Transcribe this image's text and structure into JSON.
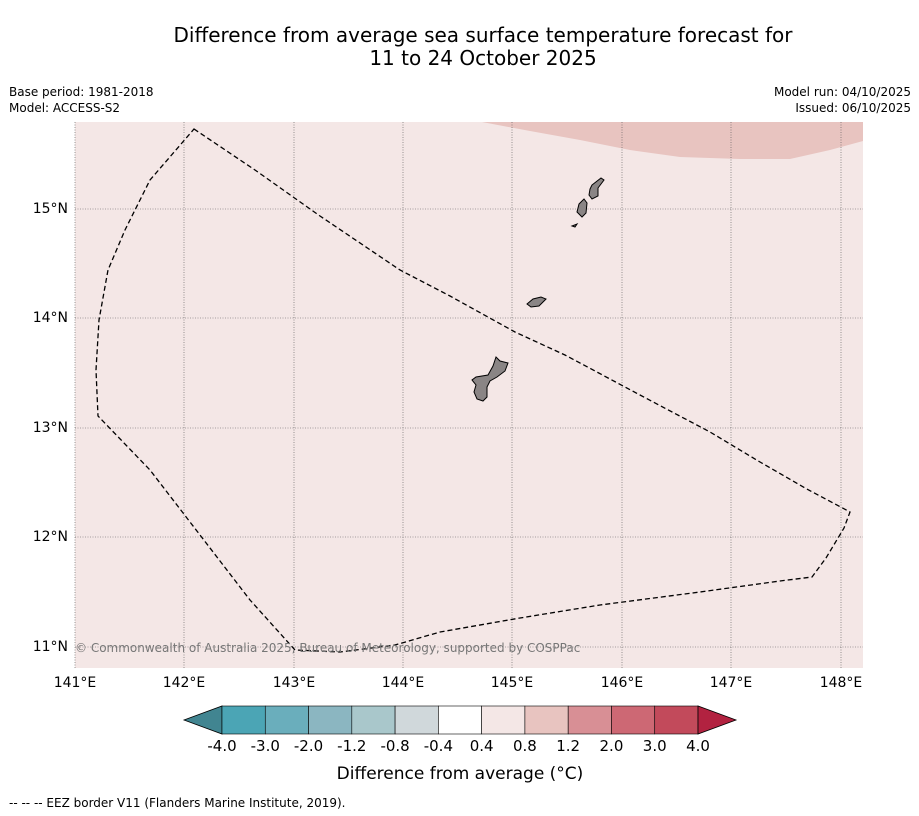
{
  "title": {
    "line1": "Difference from average sea surface temperature forecast for",
    "line2": "11 to 24 October 2025"
  },
  "meta": {
    "base_period": "Base period: 1981-2018",
    "model": "Model: ACCESS-S2",
    "model_run": "Model run: 04/10/2025",
    "issued": "Issued: 06/10/2025"
  },
  "axes": {
    "lat_labels": [
      "15°N",
      "14°N",
      "13°N",
      "12°N",
      "11°N"
    ],
    "lon_labels": [
      "141°E",
      "142°E",
      "143°E",
      "144°E",
      "145°E",
      "146°E",
      "147°E",
      "148°E"
    ]
  },
  "copyright": "© Commonwealth of Australia 2025, Bureau of Meteorology, supported by COSPPac",
  "colorbar": {
    "ticks": [
      "-4.0",
      "-3.0",
      "-2.0",
      "-1.2",
      "-0.8",
      "-0.4",
      "0.4",
      "0.8",
      "1.2",
      "2.0",
      "3.0",
      "4.0"
    ],
    "colors": [
      "#418591",
      "#4ba5b5",
      "#6aaebc",
      "#8bb6c1",
      "#a9c7cb",
      "#d0d8db",
      "#ffffff",
      "#f4e7e6",
      "#e8c4c0",
      "#d88f95",
      "#cd6874",
      "#c24a5b",
      "#b22240"
    ],
    "label": "Difference from average ($^\\circ$C)",
    "label_display": "Difference from average (°C)"
  },
  "map": {
    "background_anomaly_color": "#f4e7e6",
    "warm_patch_color": "#e8c4c0",
    "land_color": "#8a8585"
  },
  "footer": "--  --  -- EEZ border V11 (Flanders Marine Institute, 2019)."
}
